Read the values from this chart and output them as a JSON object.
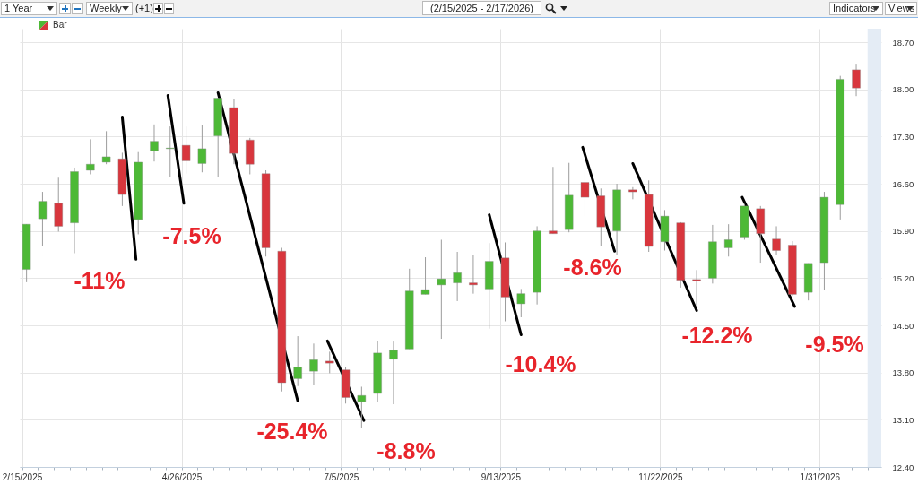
{
  "chart_data": {
    "type": "candlestick",
    "title": "(2/15/2025 - 2/17/2026)",
    "x": [
      "2025-02-17",
      "2025-02-24",
      "2025-03-03",
      "2025-03-10",
      "2025-03-17",
      "2025-03-24",
      "2025-03-31",
      "2025-04-07",
      "2025-04-14",
      "2025-04-21",
      "2025-04-28",
      "2025-05-05",
      "2025-05-12",
      "2025-05-19",
      "2025-05-26",
      "2025-06-02",
      "2025-06-09",
      "2025-06-16",
      "2025-06-23",
      "2025-06-30",
      "2025-07-07",
      "2025-07-14",
      "2025-07-21",
      "2025-07-28",
      "2025-08-04",
      "2025-08-11",
      "2025-08-18",
      "2025-08-25",
      "2025-09-01",
      "2025-09-08",
      "2025-09-15",
      "2025-09-22",
      "2025-09-29",
      "2025-10-06",
      "2025-10-13",
      "2025-10-20",
      "2025-10-27",
      "2025-11-03",
      "2025-11-10",
      "2025-11-17",
      "2025-11-24",
      "2025-12-01",
      "2025-12-08",
      "2025-12-15",
      "2025-12-22",
      "2025-12-29",
      "2026-01-05",
      "2026-01-12",
      "2026-01-19",
      "2026-01-26",
      "2026-02-02",
      "2026-02-09",
      "2026-02-16"
    ],
    "series": [
      {
        "name": "Bar",
        "ohlc": [
          [
            15.33,
            16.0,
            15.14,
            16.0
          ],
          [
            16.08,
            16.48,
            15.68,
            16.34
          ],
          [
            16.31,
            16.69,
            15.89,
            15.97
          ],
          [
            16.02,
            16.84,
            15.57,
            16.78
          ],
          [
            16.8,
            17.26,
            16.74,
            16.89
          ],
          [
            16.92,
            17.38,
            16.89,
            17.0
          ],
          [
            16.97,
            17.06,
            16.27,
            16.44
          ],
          [
            16.07,
            17.07,
            15.85,
            16.92
          ],
          [
            17.09,
            17.48,
            16.93,
            17.23
          ],
          [
            17.12,
            17.45,
            16.7,
            17.13
          ],
          [
            17.17,
            17.45,
            16.75,
            16.94
          ],
          [
            16.9,
            17.47,
            16.77,
            17.12
          ],
          [
            17.31,
            17.87,
            16.7,
            17.87
          ],
          [
            17.73,
            17.85,
            16.89,
            17.05
          ],
          [
            17.25,
            17.28,
            16.74,
            16.89
          ],
          [
            16.75,
            16.8,
            15.52,
            15.65
          ],
          [
            15.6,
            15.65,
            13.52,
            13.65
          ],
          [
            13.71,
            14.34,
            13.6,
            13.88
          ],
          [
            13.82,
            14.23,
            13.61,
            13.99
          ],
          [
            13.97,
            14.11,
            13.79,
            13.94
          ],
          [
            13.84,
            13.88,
            13.34,
            13.43
          ],
          [
            13.37,
            13.59,
            12.98,
            13.46
          ],
          [
            13.49,
            14.27,
            13.37,
            14.09
          ],
          [
            14.0,
            14.26,
            13.33,
            14.13
          ],
          [
            14.15,
            15.34,
            14.15,
            15.01
          ],
          [
            14.96,
            15.51,
            14.96,
            15.03
          ],
          [
            15.1,
            15.77,
            14.3,
            15.19
          ],
          [
            15.13,
            15.59,
            14.86,
            15.28
          ],
          [
            15.13,
            15.54,
            14.97,
            15.1
          ],
          [
            15.04,
            15.72,
            14.45,
            15.45
          ],
          [
            15.5,
            15.73,
            14.56,
            14.92
          ],
          [
            14.82,
            15.04,
            14.62,
            14.97
          ],
          [
            14.99,
            15.97,
            14.81,
            15.9
          ],
          [
            15.9,
            16.85,
            15.86,
            15.86
          ],
          [
            15.92,
            16.91,
            15.88,
            16.43
          ],
          [
            16.62,
            16.82,
            16.12,
            16.4
          ],
          [
            16.42,
            16.53,
            15.67,
            15.96
          ],
          [
            15.9,
            16.6,
            15.55,
            16.51
          ],
          [
            16.51,
            16.55,
            16.37,
            16.48
          ],
          [
            16.44,
            16.65,
            15.59,
            15.67
          ],
          [
            15.74,
            16.21,
            15.61,
            16.12
          ],
          [
            16.02,
            16.03,
            15.06,
            15.17
          ],
          [
            15.18,
            15.32,
            14.8,
            15.16
          ],
          [
            15.2,
            15.99,
            15.12,
            15.74
          ],
          [
            15.65,
            16.0,
            15.52,
            15.77
          ],
          [
            15.81,
            16.3,
            15.77,
            16.27
          ],
          [
            16.23,
            16.27,
            15.43,
            15.86
          ],
          [
            15.78,
            15.97,
            15.55,
            15.61
          ],
          [
            15.69,
            15.75,
            14.94,
            14.96
          ],
          [
            14.99,
            15.42,
            14.87,
            15.42
          ],
          [
            15.43,
            16.48,
            15.03,
            16.4
          ],
          [
            16.29,
            18.2,
            16.07,
            18.15
          ],
          [
            18.29,
            18.38,
            17.9,
            18.02
          ]
        ],
        "colors": [
          "#4db936",
          "#4db936",
          "#d8363d",
          "#4db936",
          "#4db936",
          "#4db936",
          "#d8363d",
          "#4db936",
          "#4db936",
          "#4db936",
          "#d8363d",
          "#4db936",
          "#4db936",
          "#d8363d",
          "#d8363d",
          "#d8363d",
          "#d8363d",
          "#4db936",
          "#4db936",
          "#d8363d",
          "#d8363d",
          "#4db936",
          "#4db936",
          "#4db936",
          "#4db936",
          "#4db936",
          "#4db936",
          "#4db936",
          "#d8363d",
          "#4db936",
          "#d8363d",
          "#4db936",
          "#4db936",
          "#d8363d",
          "#4db936",
          "#d8363d",
          "#d8363d",
          "#4db936",
          "#d8363d",
          "#d8363d",
          "#4db936",
          "#d8363d",
          "#d8363d",
          "#4db936",
          "#4db936",
          "#4db936",
          "#d8363d",
          "#d8363d",
          "#d8363d",
          "#4db936",
          "#4db936",
          "#4db936",
          "#d8363d"
        ]
      },
      {
        "type": "line",
        "color": "#000000",
        "x": [
          "2025-03-31",
          "2025-04-06"
        ],
        "values": [
          17.59,
          15.48
        ]
      },
      {
        "type": "line",
        "color": "#000000",
        "x": [
          "2025-04-20",
          "2025-04-27"
        ],
        "values": [
          17.91,
          16.31
        ]
      },
      {
        "type": "line",
        "color": "#000000",
        "x": [
          "2025-05-12",
          "2025-06-16"
        ],
        "values": [
          17.95,
          13.38
        ]
      },
      {
        "type": "line",
        "color": "#000000",
        "x": [
          "2025-06-29",
          "2025-07-15"
        ],
        "values": [
          14.27,
          13.09
        ]
      },
      {
        "type": "line",
        "color": "#000000",
        "x": [
          "2025-09-08",
          "2025-09-22"
        ],
        "values": [
          16.14,
          14.36
        ]
      },
      {
        "type": "line",
        "color": "#000000",
        "x": [
          "2025-10-19",
          "2025-11-02"
        ],
        "values": [
          17.14,
          15.6
        ]
      },
      {
        "type": "line",
        "color": "#000000",
        "x": [
          "2025-11-10",
          "2025-12-08"
        ],
        "values": [
          16.9,
          14.72
        ]
      },
      {
        "type": "line",
        "color": "#000000",
        "x": [
          "2025-12-28",
          "2026-01-20"
        ],
        "values": [
          16.4,
          14.78
        ]
      }
    ],
    "annotations": [
      "1 Year",
      "Weekly",
      "(+1)",
      "Indicators",
      "Views",
      "-11%",
      "-7.5%",
      "-25.4%",
      "-8.8%",
      "-10.4%",
      "-8.6%",
      "-12.2%",
      "-9.5%"
    ],
    "bands": [
      {
        "axis": "x",
        "from": "2026-02-21",
        "to": "2026-02-27",
        "color": "#e4ecf5"
      }
    ],
    "xlim": [
      "2025-02-14",
      "2026-02-27"
    ],
    "xticks": [
      {
        "value": "2025-02-15",
        "label": "2/15/2025"
      },
      {
        "value": "2025-02-22",
        "label": null
      },
      {
        "value": "2025-03-01",
        "label": null
      },
      {
        "value": "2025-03-08",
        "label": null
      },
      {
        "value": "2025-03-15",
        "label": null
      },
      {
        "value": "2025-03-22",
        "label": null
      },
      {
        "value": "2025-03-29",
        "label": null
      },
      {
        "value": "2025-04-05",
        "label": null
      },
      {
        "value": "2025-04-12",
        "label": null
      },
      {
        "value": "2025-04-19",
        "label": null
      },
      {
        "value": "2025-04-26",
        "label": "4/26/2025"
      },
      {
        "value": "2025-05-03",
        "label": null
      },
      {
        "value": "2025-05-10",
        "label": null
      },
      {
        "value": "2025-05-17",
        "label": null
      },
      {
        "value": "2025-05-24",
        "label": null
      },
      {
        "value": "2025-05-31",
        "label": null
      },
      {
        "value": "2025-06-07",
        "label": null
      },
      {
        "value": "2025-06-14",
        "label": null
      },
      {
        "value": "2025-06-21",
        "label": null
      },
      {
        "value": "2025-06-28",
        "label": null
      },
      {
        "value": "2025-07-05",
        "label": "7/5/2025"
      },
      {
        "value": "2025-07-12",
        "label": null
      },
      {
        "value": "2025-07-19",
        "label": null
      },
      {
        "value": "2025-07-26",
        "label": null
      },
      {
        "value": "2025-08-02",
        "label": null
      },
      {
        "value": "2025-08-09",
        "label": null
      },
      {
        "value": "2025-08-16",
        "label": null
      },
      {
        "value": "2025-08-23",
        "label": null
      },
      {
        "value": "2025-08-30",
        "label": null
      },
      {
        "value": "2025-09-06",
        "label": null
      },
      {
        "value": "2025-09-13",
        "label": "9/13/2025"
      },
      {
        "value": "2025-09-20",
        "label": null
      },
      {
        "value": "2025-09-27",
        "label": null
      },
      {
        "value": "2025-10-04",
        "label": null
      },
      {
        "value": "2025-10-11",
        "label": null
      },
      {
        "value": "2025-10-18",
        "label": null
      },
      {
        "value": "2025-10-25",
        "label": null
      },
      {
        "value": "2025-11-01",
        "label": null
      },
      {
        "value": "2025-11-08",
        "label": null
      },
      {
        "value": "2025-11-15",
        "label": null
      },
      {
        "value": "2025-11-22",
        "label": "11/22/2025"
      },
      {
        "value": "2025-11-29",
        "label": null
      },
      {
        "value": "2025-12-06",
        "label": null
      },
      {
        "value": "2025-12-13",
        "label": null
      },
      {
        "value": "2025-12-20",
        "label": null
      },
      {
        "value": "2025-12-27",
        "label": null
      },
      {
        "value": "2026-01-03",
        "label": null
      },
      {
        "value": "2026-01-10",
        "label": null
      },
      {
        "value": "2026-01-17",
        "label": null
      },
      {
        "value": "2026-01-24",
        "label": null
      },
      {
        "value": "2026-01-31",
        "label": "1/31/2026"
      },
      {
        "value": "2026-02-07",
        "label": null
      },
      {
        "value": "2026-02-14",
        "label": null
      },
      {
        "value": "2026-02-21",
        "label": null
      }
    ],
    "ylim": [
      12.4,
      18.9
    ],
    "yticks": [
      {
        "value": 12.4,
        "label": "12.40"
      },
      {
        "value": 13.1,
        "label": "13.10"
      },
      {
        "value": 13.8,
        "label": "13.80"
      },
      {
        "value": 14.5,
        "label": "14.50"
      },
      {
        "value": 15.2,
        "label": "15.20"
      },
      {
        "value": 15.9,
        "label": "15.90"
      },
      {
        "value": 16.6,
        "label": "16.60"
      },
      {
        "value": 17.3,
        "label": "17.30"
      },
      {
        "value": 18.0,
        "label": "18.00"
      },
      {
        "value": 18.7,
        "label": "18.70"
      }
    ],
    "grid": true,
    "legend": "top left"
  }
}
